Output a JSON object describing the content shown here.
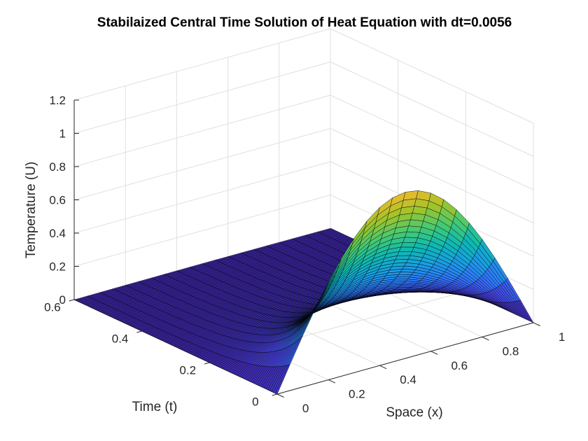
{
  "chart_data": {
    "type": "surface",
    "title": "Stabilaized Central Time Solution of Heat Equation with dt=0.0056",
    "xlabel": "Space (x)",
    "ylabel": "Time (t)",
    "zlabel": "Temperature (U)",
    "xlim": [
      0,
      1
    ],
    "ylim": [
      0,
      0.6
    ],
    "zlim": [
      0,
      1.2
    ],
    "xticks": [
      "0",
      "0.2",
      "0.4",
      "0.6",
      "0.8",
      "1"
    ],
    "yticks": [
      "0",
      "0.2",
      "0.4",
      "0.6"
    ],
    "zticks": [
      "0",
      "0.2",
      "0.4",
      "0.6",
      "0.8",
      "1",
      "1.2"
    ],
    "surface": {
      "function": "U(x,t) = sin(pi*x) * exp(-pi^2 * t)",
      "x_range": [
        0,
        1
      ],
      "t_range": [
        0,
        0.6
      ],
      "dt": 0.0056,
      "peak_value_at_t0": 1.0,
      "colormap": "parula"
    },
    "grid": true
  }
}
